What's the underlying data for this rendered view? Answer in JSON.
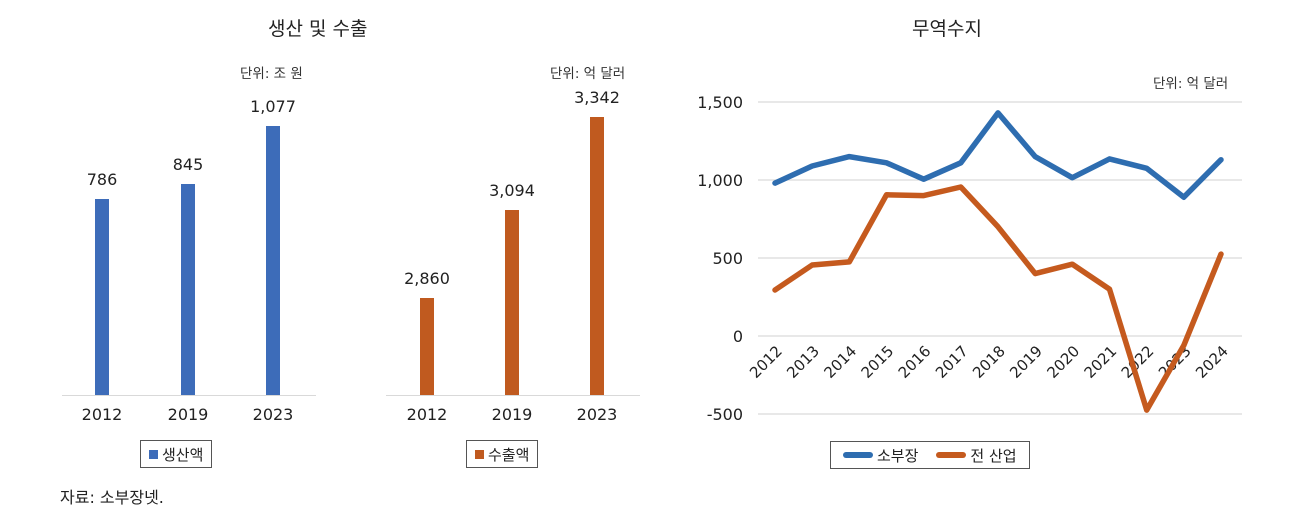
{
  "chart_data": [
    {
      "type": "bar",
      "group_title": "생산 및 수출",
      "unit": "단위: 조 원",
      "categories": [
        "2012",
        "2019",
        "2023"
      ],
      "values": [
        786,
        845,
        1077
      ],
      "value_labels": [
        "786",
        "845",
        "1,077"
      ],
      "legend": "생산액",
      "color": "#3d6cb9",
      "ylim": [
        0,
        1200
      ],
      "grid": false
    },
    {
      "type": "bar",
      "unit": "단위: 억 달러",
      "categories": [
        "2012",
        "2019",
        "2023"
      ],
      "values": [
        2860,
        3094,
        3342
      ],
      "value_labels": [
        "2,860",
        "3,094",
        "3,342"
      ],
      "legend": "수출액",
      "color": "#c05a1f",
      "ylim": [
        2400,
        3400
      ],
      "grid": false
    },
    {
      "type": "line",
      "title": "무역수지",
      "unit": "단위: 억 달러",
      "x": [
        "2012",
        "2013",
        "2014",
        "2015",
        "2016",
        "2017",
        "2018",
        "2019",
        "2020",
        "2021",
        "2022",
        "2023",
        "2024"
      ],
      "series": [
        {
          "name": "소부장",
          "color": "#2e6db0",
          "values": [
            980,
            1090,
            1150,
            1110,
            1005,
            1110,
            1430,
            1150,
            1015,
            1135,
            1075,
            890,
            1130
          ]
        },
        {
          "name": "전 산업",
          "color": "#c55a1e",
          "values": [
            295,
            455,
            475,
            905,
            900,
            955,
            700,
            400,
            460,
            300,
            -475,
            -60,
            525
          ]
        }
      ],
      "ylim": [
        -500,
        1500
      ],
      "yticks": [
        1500,
        1000,
        500,
        0,
        -500
      ],
      "ytick_labels": [
        "1,500",
        "1,000",
        "500",
        "0",
        "-500"
      ],
      "grid": true,
      "legend_position": "bottom"
    }
  ],
  "source": "자료: 소부장넷."
}
